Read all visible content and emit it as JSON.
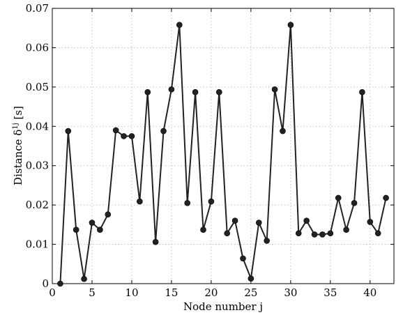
{
  "chart_data": {
    "type": "line",
    "xlabel": "Node number j",
    "ylabel_main": "Distance δ",
    "ylabel_sup": "1j",
    "ylabel_unit": " [s]",
    "xlim": [
      0,
      43
    ],
    "ylim": [
      0,
      0.07
    ],
    "x_ticks": [
      0,
      5,
      10,
      15,
      20,
      25,
      30,
      35,
      40
    ],
    "y_ticks": [
      0,
      0.01,
      0.02,
      0.03,
      0.04,
      0.05,
      0.06,
      0.07
    ],
    "y_tick_labels": [
      "0",
      "0.01",
      "0.02",
      "0.03",
      "0.04",
      "0.05",
      "0.06",
      "0.07"
    ],
    "grid": true,
    "marker": "circle",
    "line_color": "#222222",
    "series": [
      {
        "x": [
          1,
          2,
          3,
          4,
          5,
          6,
          7,
          8,
          9,
          10,
          11,
          12,
          13,
          14,
          15,
          16,
          17,
          18,
          19,
          20,
          21,
          22,
          23,
          24,
          25,
          26,
          27,
          28,
          29,
          30,
          31,
          32,
          33,
          34,
          35,
          36,
          37,
          38,
          39,
          40,
          41,
          42
        ],
        "values": [
          0,
          0.0388,
          0.0137,
          0.0012,
          0.0155,
          0.0137,
          0.0176,
          0.039,
          0.0375,
          0.0375,
          0.0209,
          0.0487,
          0.0106,
          0.0388,
          0.0494,
          0.0658,
          0.0205,
          0.0487,
          0.0137,
          0.0209,
          0.0487,
          0.0128,
          0.016,
          0.0064,
          0.0013,
          0.0155,
          0.0109,
          0.0494,
          0.0388,
          0.0658,
          0.0128,
          0.016,
          0.0125,
          0.0125,
          0.0128,
          0.0218,
          0.0137,
          0.0205,
          0.0487,
          0.0157,
          0.0128,
          0.0218
        ]
      }
    ]
  }
}
